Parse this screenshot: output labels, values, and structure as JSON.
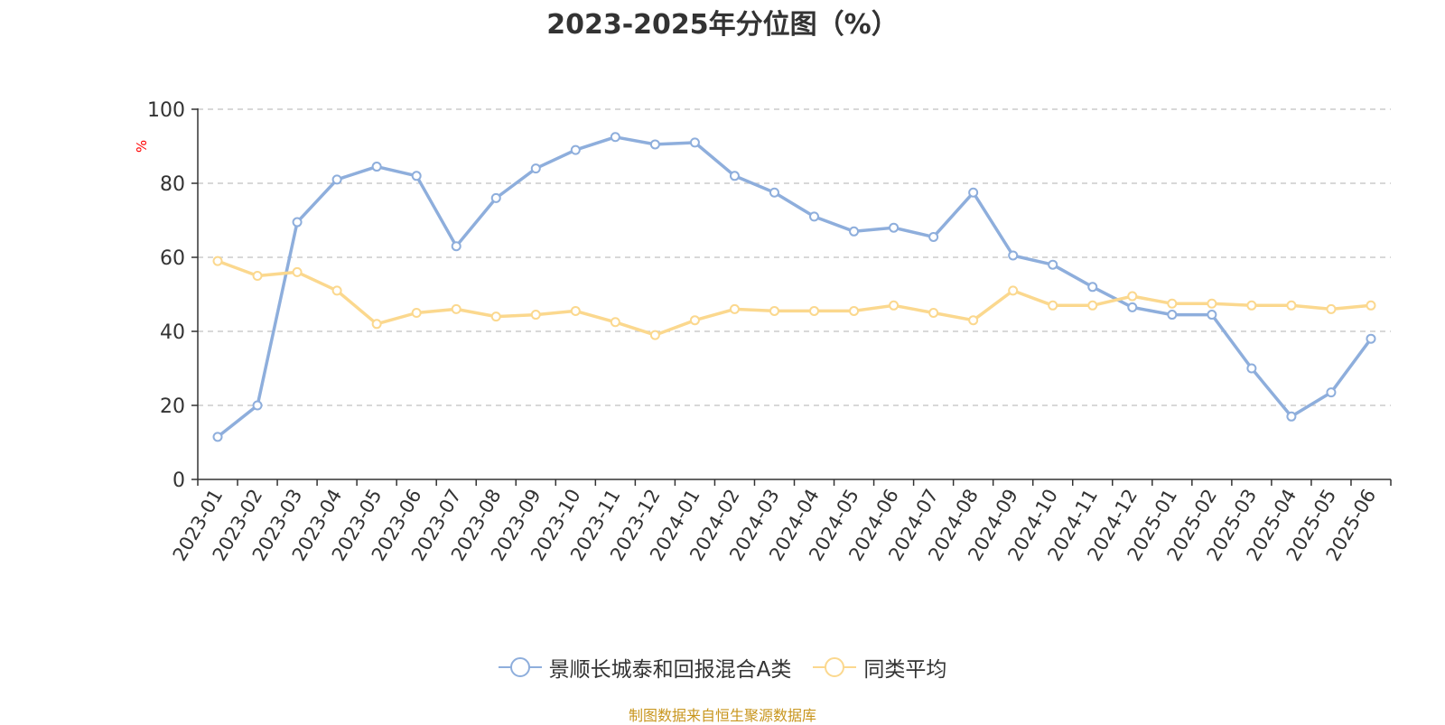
{
  "chart_data": {
    "type": "line",
    "title": "2023-2025年分位图（%）",
    "ylabel": "%",
    "ylim": [
      0,
      100
    ],
    "yticks": [
      0,
      20,
      40,
      60,
      80,
      100
    ],
    "grid": true,
    "legend_position": "bottom",
    "categories": [
      "2023-01",
      "2023-02",
      "2023-03",
      "2023-04",
      "2023-05",
      "2023-06",
      "2023-07",
      "2023-08",
      "2023-09",
      "2023-10",
      "2023-11",
      "2023-12",
      "2024-01",
      "2024-02",
      "2024-03",
      "2024-04",
      "2024-05",
      "2024-06",
      "2024-07",
      "2024-08",
      "2024-09",
      "2024-10",
      "2024-11",
      "2024-12",
      "2025-01",
      "2025-02",
      "2025-03",
      "2025-04",
      "2025-05",
      "2025-06"
    ],
    "series": [
      {
        "name": "景顺长城泰和回报混合A类",
        "color": "#8eaedc",
        "values": [
          11.5,
          20,
          69.5,
          81,
          84.5,
          82,
          63,
          76,
          84,
          89,
          92.5,
          90.5,
          91,
          82,
          77.5,
          71,
          67,
          68,
          65.5,
          77.5,
          60.5,
          58,
          52,
          46.5,
          44.5,
          44.5,
          30,
          17,
          23.5,
          38
        ]
      },
      {
        "name": "同类平均",
        "color": "#fbd88e",
        "values": [
          59,
          55,
          56,
          51,
          42,
          45,
          46,
          44,
          44.5,
          45.5,
          42.5,
          39,
          43,
          46,
          45.5,
          45.5,
          45.5,
          47,
          45,
          43,
          51,
          47,
          47,
          49.5,
          47.5,
          47.5,
          47,
          47,
          46,
          47
        ]
      }
    ]
  },
  "source_text": "制图数据来自恒生聚源数据库"
}
